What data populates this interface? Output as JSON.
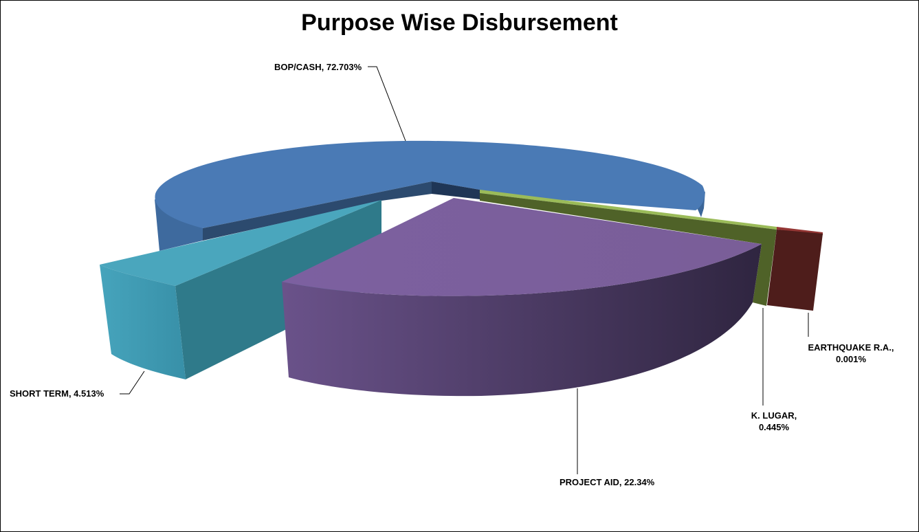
{
  "chart_data": {
    "type": "pie",
    "title": "Purpose Wise Disbursement",
    "style": "3d-exploded",
    "categories": [
      "BOP/CASH",
      "PROJECT AID",
      "SHORT TERM",
      "K. LUGAR",
      "EARTHQUAKE R.A."
    ],
    "values": [
      72.703,
      22.34,
      4.513,
      0.445,
      0.001
    ],
    "data_labels": [
      "BOP/CASH, 72.703%",
      "PROJECT AID, 22.34%",
      "SHORT TERM, 4.513%",
      "K. LUGAR, 0.445%",
      "EARTHQUAKE R.A., 0.001%"
    ],
    "data_label_lines": {
      "kl_1": "K. LUGAR,",
      "kl_2": "0.445%",
      "eq_1": "EARTHQUAKE R.A.,",
      "eq_2": "0.001%"
    },
    "colors": {
      "BOP/CASH": "#4a7ab5",
      "PROJECT AID": "#7a5e9a",
      "SHORT TERM": "#44a2ba",
      "K. LUGAR": "#76923c",
      "EARTHQUAKE R.A.": "#943634"
    },
    "legend": "none",
    "grid": false
  }
}
